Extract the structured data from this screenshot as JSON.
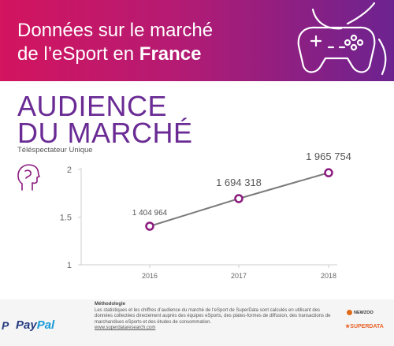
{
  "header": {
    "title_line1": "Données sur le marché",
    "title_line2_prefix": "de l’eSport en ",
    "title_line2_bold": "France"
  },
  "section": {
    "title_line1": "AUDIENCE",
    "title_line2": "DU MARCHÉ",
    "subtitle": "Téléspectateur Unique"
  },
  "chart_data": {
    "type": "line",
    "title": "AUDIENCE DU MARCHÉ",
    "subtitle": "Téléspectateur Unique",
    "categories": [
      "2016",
      "2017",
      "2018"
    ],
    "series": [
      {
        "values": [
          1.404964,
          1.694318,
          1.965754
        ]
      }
    ],
    "data_labels": [
      "1 404 964",
      "1 694 318",
      "1 965 754"
    ],
    "y_ticks": [
      "1",
      "1.5",
      "2"
    ],
    "ylim": [
      1,
      2
    ],
    "grid": false,
    "line_color": "#7a7a7a",
    "marker_color": "#8b1a7e"
  },
  "footer": {
    "method_title": "Méthodologie",
    "method_text": "Les statistiques et les chiffres d’audience du marché de l’eSport de SuperData sont calculés en utilisant des données collectées directement auprès des équipes eSports, des plates-formes de diffusion, des transactions de marchandises eSports et des études de consommation.",
    "method_link": "www.superdataresearch.com",
    "paypal_a": "Pay",
    "paypal_b": "Pal",
    "paypal_mark": "P",
    "newzoo_text": "NEWZOO",
    "superdata_text": "SUPERDATA"
  },
  "colors": {
    "banner_start": "#d3145f",
    "banner_end": "#6c2390",
    "accent_purple": "#6a2b94"
  },
  "icons": [
    "gamepad-icon",
    "head-profile-icon",
    "paypal-logo-icon"
  ]
}
